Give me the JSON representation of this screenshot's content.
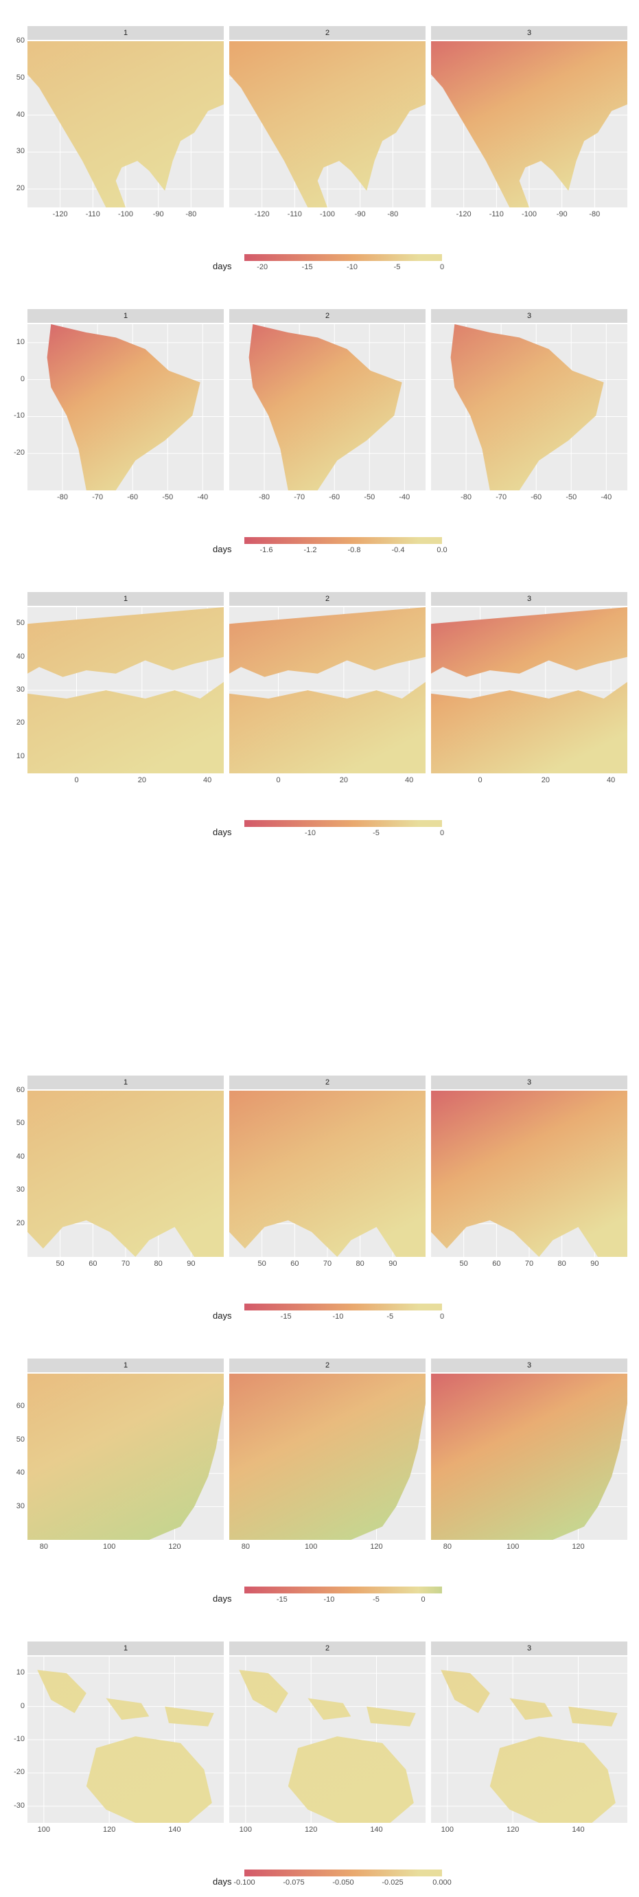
{
  "colors": {
    "low": "#d35a6a",
    "mid": "#e9a86e",
    "high": "#e8dd9c",
    "green": "#c8d48f",
    "panel_bg": "#ebebeb",
    "strip_bg": "#d9d9d9"
  },
  "chart_data": [
    {
      "type": "heatmap",
      "region": "north-america",
      "facets": [
        "1",
        "2",
        "3"
      ],
      "x_ticks": [
        "-120",
        "-110",
        "-100",
        "-90",
        "-80"
      ],
      "x_values": [
        -120,
        -110,
        -100,
        -90,
        -80
      ],
      "xlim": [
        -130,
        -70
      ],
      "y_ticks": [
        "60",
        "50",
        "40",
        "30",
        "20"
      ],
      "y_values": [
        60,
        50,
        40,
        30,
        20
      ],
      "ylim": [
        15,
        60
      ],
      "legend_title": "days",
      "legend_ticks": [
        "-20",
        "-15",
        "-10",
        "-5",
        "0"
      ],
      "legend_values": [
        -20,
        -15,
        -10,
        -5,
        0
      ],
      "legend_range": [
        -22,
        0
      ],
      "legend_high": "high",
      "intensity": [
        0.25,
        0.5,
        0.85
      ]
    },
    {
      "type": "heatmap",
      "region": "south-america",
      "facets": [
        "1",
        "2",
        "3"
      ],
      "x_ticks": [
        "-80",
        "-70",
        "-60",
        "-50",
        "-40"
      ],
      "x_values": [
        -80,
        -70,
        -60,
        -50,
        -40
      ],
      "xlim": [
        -90,
        -34
      ],
      "y_ticks": [
        "10",
        "0",
        "-10",
        "-20"
      ],
      "y_values": [
        10,
        0,
        -10,
        -20
      ],
      "ylim": [
        -30,
        15
      ],
      "legend_title": "days",
      "legend_ticks": [
        "-1.6",
        "-1.2",
        "-0.8",
        "-0.4",
        "0.0"
      ],
      "legend_values": [
        -1.6,
        -1.2,
        -0.8,
        -0.4,
        0.0
      ],
      "legend_range": [
        -1.8,
        0
      ],
      "legend_high": "high",
      "intensity": [
        0.9,
        0.85,
        0.75
      ]
    },
    {
      "type": "heatmap",
      "region": "europe-africa",
      "facets": [
        "1",
        "2",
        "3"
      ],
      "x_ticks": [
        "0",
        "20",
        "40"
      ],
      "x_values": [
        0,
        20,
        40
      ],
      "xlim": [
        -15,
        45
      ],
      "y_ticks": [
        "50",
        "40",
        "30",
        "20",
        "10"
      ],
      "y_values": [
        50,
        40,
        30,
        20,
        10
      ],
      "ylim": [
        5,
        55
      ],
      "legend_title": "days",
      "legend_ticks": [
        "-10",
        "-5",
        "0"
      ],
      "legend_values": [
        -10,
        -5,
        0
      ],
      "legend_range": [
        -15,
        0
      ],
      "legend_high": "high",
      "intensity": [
        0.3,
        0.6,
        0.9
      ]
    },
    {
      "type": "heatmap",
      "region": "central-asia",
      "facets": [
        "1",
        "2",
        "3"
      ],
      "x_ticks": [
        "50",
        "60",
        "70",
        "80",
        "90"
      ],
      "x_values": [
        50,
        60,
        70,
        80,
        90
      ],
      "xlim": [
        40,
        100
      ],
      "y_ticks": [
        "60",
        "50",
        "40",
        "30",
        "20"
      ],
      "y_values": [
        60,
        50,
        40,
        30,
        20
      ],
      "ylim": [
        10,
        60
      ],
      "legend_title": "days",
      "legend_ticks": [
        "-15",
        "-10",
        "-5",
        "0"
      ],
      "legend_values": [
        -15,
        -10,
        -5,
        0
      ],
      "legend_range": [
        -19,
        0
      ],
      "legend_high": "high",
      "intensity": [
        0.3,
        0.6,
        0.9
      ]
    },
    {
      "type": "heatmap",
      "region": "east-asia",
      "facets": [
        "1",
        "2",
        "3"
      ],
      "x_ticks": [
        "80",
        "100",
        "120"
      ],
      "x_values": [
        80,
        100,
        120
      ],
      "xlim": [
        75,
        135
      ],
      "y_ticks": [
        "60",
        "50",
        "40",
        "30"
      ],
      "y_values": [
        60,
        50,
        40,
        30
      ],
      "ylim": [
        20,
        70
      ],
      "legend_title": "days",
      "legend_ticks": [
        "-15",
        "-10",
        "-5",
        "0"
      ],
      "legend_values": [
        -15,
        -10,
        -5,
        0
      ],
      "legend_range": [
        -19,
        2
      ],
      "legend_high": "green",
      "intensity": [
        0.3,
        0.65,
        0.9
      ]
    },
    {
      "type": "heatmap",
      "region": "australasia",
      "facets": [
        "1",
        "2",
        "3"
      ],
      "x_ticks": [
        "100",
        "120",
        "140"
      ],
      "x_values": [
        100,
        120,
        140
      ],
      "xlim": [
        95,
        155
      ],
      "y_ticks": [
        "10",
        "0",
        "-10",
        "-20",
        "-30"
      ],
      "y_values": [
        10,
        0,
        -10,
        -20,
        -30
      ],
      "ylim": [
        -35,
        15
      ],
      "legend_title": "days",
      "legend_ticks": [
        "-0.100",
        "-0.075",
        "-0.050",
        "-0.025",
        "0.000"
      ],
      "legend_values": [
        -0.1,
        -0.075,
        -0.05,
        -0.025,
        0
      ],
      "legend_range": [
        -0.1,
        0
      ],
      "legend_high": "high",
      "intensity": [
        0.02,
        0.02,
        0.05
      ]
    }
  ]
}
